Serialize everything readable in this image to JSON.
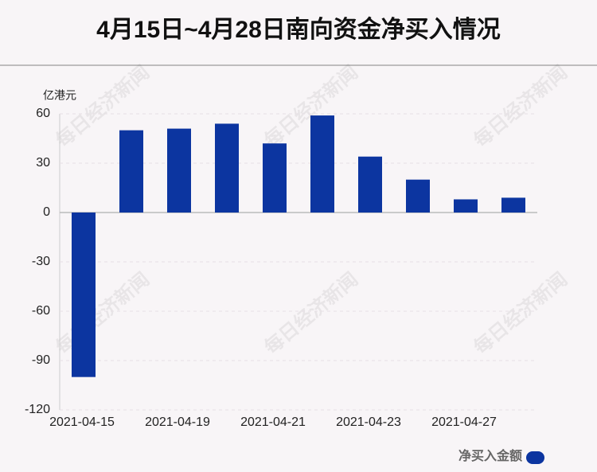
{
  "chart_data": {
    "type": "bar",
    "title": "4月15日~4月28日南向资金净买入情况",
    "y_axis_label": "亿港元",
    "categories": [
      "2021-04-15",
      null,
      "2021-04-19",
      null,
      "2021-04-21",
      null,
      "2021-04-23",
      null,
      "2021-04-27",
      null
    ],
    "series": [
      {
        "name": "净买入金额",
        "color": "#0c35a0",
        "values": [
          -100,
          50,
          51,
          54,
          42,
          59,
          34,
          20,
          8,
          9
        ]
      }
    ],
    "ylim": [
      -120,
      60
    ],
    "yticks": [
      -120,
      -90,
      -60,
      -30,
      0,
      30,
      60
    ],
    "grid": true,
    "legend_position": "bottom-right",
    "watermark": "每日经济新闻"
  }
}
